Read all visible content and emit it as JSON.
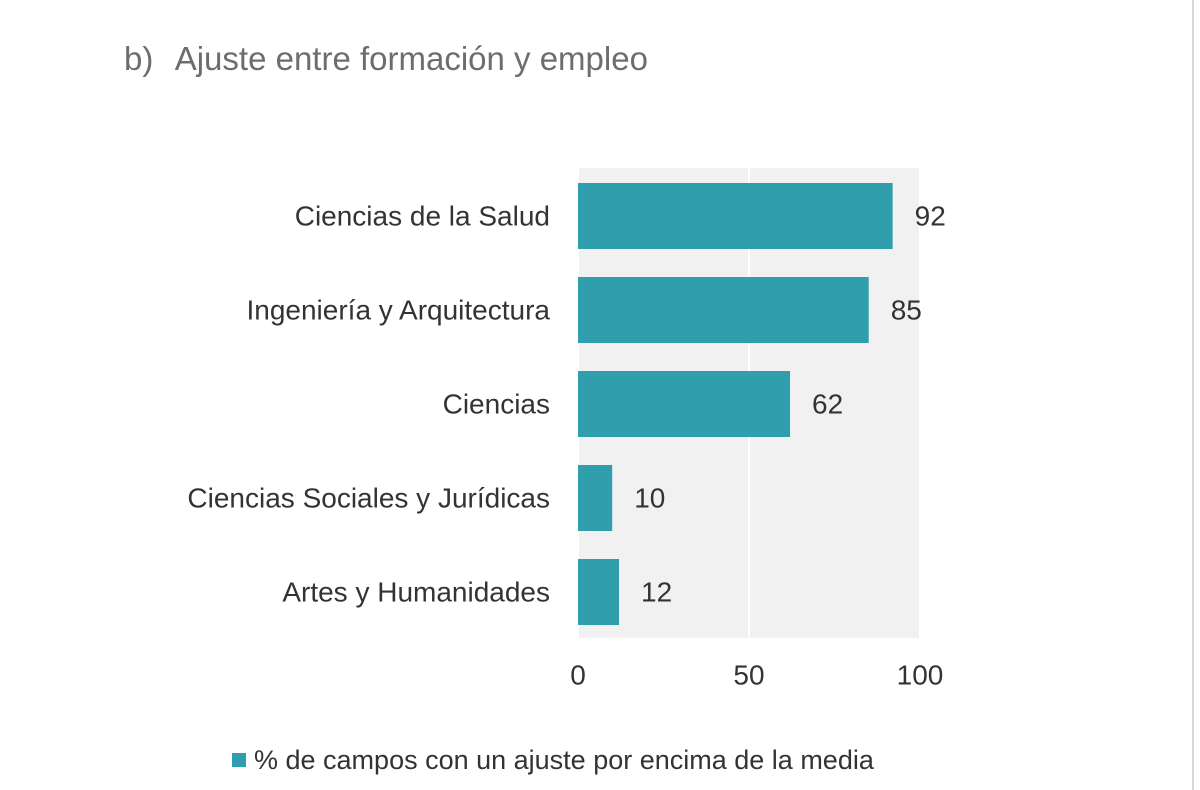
{
  "chart_data": {
    "type": "bar",
    "orientation": "horizontal",
    "panel": "b)",
    "title": "Ajuste entre formación y empleo",
    "categories": [
      "Ciencias de la Salud",
      "Ingeniería y Arquitectura",
      "Ciencias",
      "Ciencias Sociales y Jurídicas",
      "Artes y Humanidades"
    ],
    "series": [
      {
        "name": "% de campos con un ajuste por encima de la media",
        "values": [
          92,
          85,
          62,
          10,
          12
        ]
      }
    ],
    "xlim": [
      0,
      100
    ],
    "xticks": [
      0,
      50,
      100
    ],
    "xtick_labels": [
      "0",
      "50",
      "100"
    ],
    "grid": true,
    "legend_position": "bottom",
    "colors": {
      "bar": "#309ead",
      "plot_background": "#f1f1f1",
      "gridline": "#ffffff",
      "text": "#333333",
      "title": "#6d6d6d"
    }
  }
}
